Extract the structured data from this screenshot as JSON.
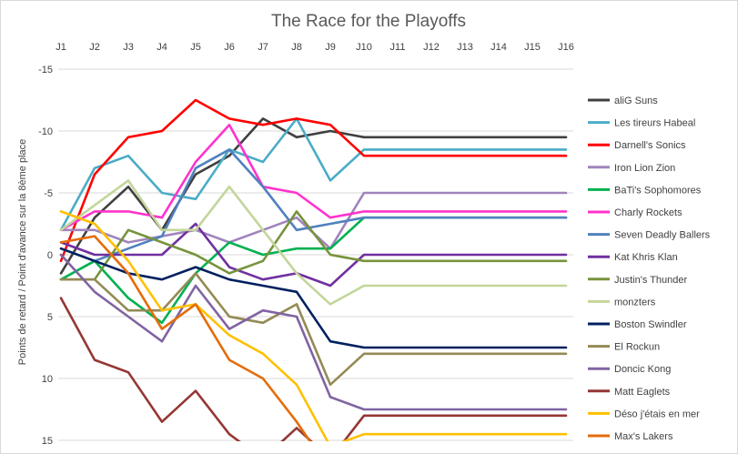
{
  "chart_data": {
    "type": "line",
    "title": "The Race for the Playoffs",
    "xlabel": "",
    "ylabel": "Points de retard / Point d'avance sur la 8ème place",
    "x": [
      "J1",
      "J2",
      "J3",
      "J4",
      "J5",
      "J6",
      "J7",
      "J8",
      "J9",
      "J10",
      "J11",
      "J12",
      "J13",
      "J14",
      "J15",
      "J16"
    ],
    "y_axis": {
      "inverted": true,
      "range": [
        -15,
        15
      ],
      "ticks": [
        -15,
        -10,
        -5,
        0,
        5,
        10,
        15
      ],
      "tick_labels": [
        "-15",
        "-10",
        "-5",
        "0",
        "5",
        "10",
        "15"
      ]
    },
    "grid": "horizontal",
    "legend_position": "right",
    "series": [
      {
        "name": "aliG Suns",
        "color": "#404040",
        "values": [
          1.5,
          -3,
          -5.5,
          -2,
          -6.5,
          -8,
          -11,
          -9.5,
          -10,
          -9.5,
          -9.5,
          -9.5,
          -9.5,
          -9.5,
          -9.5,
          -9.5
        ]
      },
      {
        "name": "Les tireurs Habeal",
        "color": "#4bacc6",
        "values": [
          -2,
          -7,
          -8,
          -5,
          -4.5,
          -8.5,
          -7.5,
          -11,
          -6,
          -8.5,
          -8.5,
          -8.5,
          -8.5,
          -8.5,
          -8.5,
          -8.5
        ]
      },
      {
        "name": "Darnell's Sonics",
        "color": "#ff0000",
        "values": [
          0.5,
          -6.5,
          -9.5,
          -10,
          -12.5,
          -11,
          -10.5,
          -11,
          -10.5,
          -8,
          -8,
          -8,
          -8,
          -8,
          -8,
          -8
        ]
      },
      {
        "name": "Iron Lion Zion",
        "color": "#a084bd",
        "values": [
          -2,
          -2,
          -1,
          -1.5,
          -2,
          -1,
          -2,
          -3,
          -0.5,
          -5,
          -5,
          -5,
          -5,
          -5,
          -5,
          -5
        ]
      },
      {
        "name": "BaTi's Sophomores",
        "color": "#00b050",
        "values": [
          2,
          0.5,
          3.5,
          5.5,
          1.5,
          -1,
          0,
          -0.5,
          -0.5,
          -3,
          -3,
          -3,
          -3,
          -3,
          -3,
          -3
        ]
      },
      {
        "name": "Charly Rockets",
        "color": "#ff33cc",
        "values": [
          -2,
          -3.5,
          -3.5,
          -3,
          -7.5,
          -10.5,
          -5.5,
          -5,
          -3,
          -3.5,
          -3.5,
          -3.5,
          -3.5,
          -3.5,
          -3.5,
          -3.5
        ]
      },
      {
        "name": "Seven Deadly Ballers",
        "color": "#4f81bd",
        "values": [
          -0.5,
          0.5,
          -0.5,
          -1.5,
          -7,
          -8.5,
          -5.5,
          -2,
          -2.5,
          -3,
          -3,
          -3,
          -3,
          -3,
          -3,
          -3
        ]
      },
      {
        "name": "Kat Khris Klan",
        "color": "#7030a0",
        "values": [
          -1,
          0,
          0,
          0,
          -2.5,
          1,
          2,
          1.5,
          2.5,
          0,
          0,
          0,
          0,
          0,
          0,
          0
        ]
      },
      {
        "name": "Justin's Thunder",
        "color": "#77933c",
        "values": [
          2,
          2,
          -2,
          -1,
          0,
          1.5,
          0.5,
          -3.5,
          0,
          0.5,
          0.5,
          0.5,
          0.5,
          0.5,
          0.5,
          0.5
        ]
      },
      {
        "name": "monzters",
        "color": "#c3d69b",
        "values": [
          -2,
          -4,
          -6,
          -2,
          -2,
          -5.5,
          -2,
          1.5,
          4,
          2.5,
          2.5,
          2.5,
          2.5,
          2.5,
          2.5,
          2.5
        ]
      },
      {
        "name": "Boston Swindler",
        "color": "#002060",
        "values": [
          -0.5,
          0.5,
          1.5,
          2,
          1,
          2,
          2.5,
          3,
          7,
          7.5,
          7.5,
          7.5,
          7.5,
          7.5,
          7.5,
          7.5
        ]
      },
      {
        "name": "El Rockun",
        "color": "#948a54",
        "values": [
          2,
          2,
          4.5,
          4.5,
          1.5,
          5,
          5.5,
          4,
          10.5,
          8,
          8,
          8,
          8,
          8,
          8,
          8
        ]
      },
      {
        "name": "Doncic Kong",
        "color": "#8064a2",
        "values": [
          0,
          3,
          5,
          7,
          2.5,
          6,
          4.5,
          5,
          11.5,
          12.5,
          12.5,
          12.5,
          12.5,
          12.5,
          12.5,
          12.5
        ]
      },
      {
        "name": "Matt Eaglets",
        "color": "#953735",
        "values": [
          3.5,
          8.5,
          9.5,
          13.5,
          11,
          14.5,
          16.5,
          14,
          16.5,
          13,
          13,
          13,
          13,
          13,
          13,
          13
        ]
      },
      {
        "name": "Déso j'étais en mer",
        "color": "#ffc000",
        "values": [
          -3.5,
          -2.5,
          0.5,
          4.5,
          4,
          6.5,
          8,
          10.5,
          15.5,
          14.5,
          14.5,
          14.5,
          14.5,
          14.5,
          14.5,
          14.5
        ]
      },
      {
        "name": "Max's Lakers",
        "color": "#e46c0a",
        "values": [
          -1,
          -1.5,
          1.5,
          6,
          4,
          8.5,
          10,
          13.5,
          17.5,
          16.5,
          16.5,
          16.5,
          16.5,
          16.5,
          16.5,
          16.5
        ]
      }
    ]
  }
}
